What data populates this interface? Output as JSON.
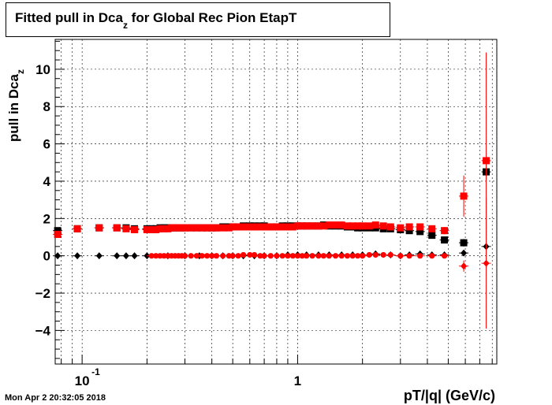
{
  "title_main": "Fitted pull in Dca",
  "title_sub": "z",
  "title_rest": " for Global Rec Pion EtapT",
  "ylabel_main": "pull in Dca",
  "ylabel_sub": "z",
  "xlabel": "pT/|q| (GeV/c)",
  "timestamp": "Mon Apr  2 20:32:05 2018",
  "chart_data": {
    "type": "scatter",
    "title": "Fitted pull in Dca_z for Global Rec Pion EtapT",
    "xlabel": "pT/|q| (GeV/c)",
    "ylabel": "pull in Dca_z",
    "xscale": "log",
    "xlim": [
      0.075,
      8.4
    ],
    "ylim": [
      -5.8,
      11.6
    ],
    "yticks": [
      -4,
      -2,
      0,
      2,
      4,
      6,
      8,
      10
    ],
    "xtick_labels": [
      {
        "x": 0.1,
        "label": "10",
        "sup": "-1"
      },
      {
        "x": 1,
        "label": "1",
        "sup": ""
      }
    ],
    "grid": true,
    "colors": {
      "black": "#000000",
      "red": "#ff0000"
    },
    "series": [
      {
        "marker": "square",
        "color": "#000000",
        "x": [
          0.077,
          0.095,
          0.12,
          0.145,
          0.16,
          0.175,
          0.2,
          0.21,
          0.22,
          0.23,
          0.24,
          0.25,
          0.26,
          0.27,
          0.28,
          0.29,
          0.3,
          0.32,
          0.34,
          0.36,
          0.38,
          0.4,
          0.42,
          0.45,
          0.48,
          0.5,
          0.53,
          0.56,
          0.6,
          0.63,
          0.67,
          0.7,
          0.75,
          0.8,
          0.85,
          0.9,
          0.95,
          1.0,
          1.05,
          1.1,
          1.17,
          1.25,
          1.32,
          1.4,
          1.5,
          1.6,
          1.7,
          1.8,
          1.9,
          2.0,
          2.15,
          2.3,
          2.5,
          2.7,
          3.0,
          3.3,
          3.7,
          4.2,
          4.8,
          5.9,
          7.5
        ],
        "y": [
          1.35,
          1.45,
          1.5,
          1.5,
          1.5,
          1.45,
          1.45,
          1.45,
          1.45,
          1.5,
          1.5,
          1.5,
          1.5,
          1.5,
          1.5,
          1.5,
          1.5,
          1.5,
          1.5,
          1.5,
          1.5,
          1.5,
          1.5,
          1.55,
          1.55,
          1.55,
          1.55,
          1.6,
          1.6,
          1.6,
          1.6,
          1.6,
          1.55,
          1.55,
          1.6,
          1.6,
          1.6,
          1.6,
          1.6,
          1.6,
          1.6,
          1.6,
          1.65,
          1.6,
          1.6,
          1.6,
          1.55,
          1.55,
          1.5,
          1.5,
          1.5,
          1.5,
          1.45,
          1.45,
          1.4,
          1.35,
          1.3,
          1.1,
          0.85,
          0.7,
          4.5
        ],
        "yerr": [
          0.05,
          0.05,
          0.05,
          0.05,
          0.05,
          0.05,
          0.05,
          0.05,
          0.05,
          0.05,
          0.05,
          0.05,
          0.05,
          0.05,
          0.05,
          0.05,
          0.05,
          0.05,
          0.05,
          0.05,
          0.05,
          0.05,
          0.05,
          0.05,
          0.05,
          0.05,
          0.05,
          0.05,
          0.05,
          0.05,
          0.05,
          0.05,
          0.05,
          0.05,
          0.05,
          0.05,
          0.05,
          0.05,
          0.05,
          0.05,
          0.05,
          0.05,
          0.05,
          0.05,
          0.05,
          0.05,
          0.05,
          0.05,
          0.05,
          0.05,
          0.05,
          0.05,
          0.05,
          0.05,
          0.05,
          0.05,
          0.05,
          0.1,
          0.15,
          0.2,
          0.4
        ]
      },
      {
        "marker": "diamond",
        "color": "#000000",
        "x": [
          0.077,
          0.095,
          0.12,
          0.145,
          0.16,
          0.175,
          0.2,
          0.25,
          0.3,
          0.35,
          0.4,
          0.45,
          0.5,
          0.56,
          0.63,
          0.7,
          0.8,
          0.9,
          1.0,
          1.1,
          1.25,
          1.4,
          1.6,
          1.8,
          2.0,
          2.3,
          2.7,
          3.0,
          3.3,
          3.7,
          4.2,
          4.8,
          5.9,
          7.5
        ],
        "y": [
          0.0,
          0.0,
          0.0,
          0.0,
          0.0,
          0.0,
          0.0,
          0.0,
          0.0,
          0.0,
          0.0,
          0.0,
          0.0,
          0.0,
          0.0,
          0.0,
          0.0,
          0.05,
          0.05,
          0.05,
          0.05,
          0.05,
          0.05,
          0.05,
          0.05,
          0.1,
          0.05,
          0.0,
          0.05,
          0.1,
          0.05,
          0.05,
          0.15,
          0.5
        ],
        "yerr": [
          0.02,
          0.02,
          0.02,
          0.02,
          0.02,
          0.02,
          0.02,
          0.02,
          0.02,
          0.02,
          0.02,
          0.02,
          0.02,
          0.02,
          0.02,
          0.02,
          0.02,
          0.02,
          0.02,
          0.02,
          0.02,
          0.02,
          0.02,
          0.02,
          0.02,
          0.02,
          0.02,
          0.02,
          0.02,
          0.02,
          0.05,
          0.05,
          0.1,
          0.2
        ]
      },
      {
        "marker": "square",
        "color": "#ff0000",
        "x": [
          0.077,
          0.095,
          0.12,
          0.145,
          0.16,
          0.175,
          0.2,
          0.21,
          0.22,
          0.23,
          0.24,
          0.25,
          0.26,
          0.27,
          0.28,
          0.29,
          0.3,
          0.32,
          0.34,
          0.36,
          0.38,
          0.4,
          0.42,
          0.45,
          0.48,
          0.5,
          0.53,
          0.56,
          0.6,
          0.63,
          0.67,
          0.7,
          0.75,
          0.8,
          0.85,
          0.9,
          0.95,
          1.0,
          1.05,
          1.1,
          1.17,
          1.25,
          1.32,
          1.4,
          1.5,
          1.6,
          1.7,
          1.8,
          1.9,
          2.0,
          2.15,
          2.3,
          2.5,
          2.7,
          3.0,
          3.3,
          3.7,
          4.2,
          4.8,
          5.9,
          7.5
        ],
        "y": [
          1.15,
          1.45,
          1.5,
          1.5,
          1.45,
          1.4,
          1.4,
          1.4,
          1.4,
          1.45,
          1.45,
          1.45,
          1.5,
          1.5,
          1.5,
          1.5,
          1.5,
          1.5,
          1.5,
          1.5,
          1.5,
          1.5,
          1.5,
          1.5,
          1.5,
          1.55,
          1.55,
          1.55,
          1.55,
          1.55,
          1.55,
          1.55,
          1.55,
          1.55,
          1.55,
          1.55,
          1.55,
          1.6,
          1.6,
          1.6,
          1.6,
          1.6,
          1.6,
          1.65,
          1.65,
          1.65,
          1.6,
          1.6,
          1.6,
          1.6,
          1.6,
          1.65,
          1.6,
          1.55,
          1.5,
          1.55,
          1.55,
          1.45,
          1.35,
          3.2,
          5.1
        ],
        "yerr": [
          0.05,
          0.05,
          0.05,
          0.05,
          0.05,
          0.05,
          0.05,
          0.05,
          0.05,
          0.05,
          0.05,
          0.05,
          0.05,
          0.05,
          0.05,
          0.05,
          0.05,
          0.05,
          0.05,
          0.05,
          0.05,
          0.05,
          0.05,
          0.05,
          0.05,
          0.05,
          0.05,
          0.05,
          0.05,
          0.05,
          0.05,
          0.05,
          0.05,
          0.05,
          0.05,
          0.05,
          0.05,
          0.05,
          0.05,
          0.05,
          0.05,
          0.05,
          0.05,
          0.05,
          0.05,
          0.05,
          0.05,
          0.05,
          0.05,
          0.05,
          0.05,
          0.05,
          0.05,
          0.05,
          0.05,
          0.05,
          0.05,
          0.1,
          0.2,
          1.1,
          5.8
        ]
      },
      {
        "marker": "circle",
        "color": "#ff0000",
        "x": [
          0.21,
          0.22,
          0.23,
          0.24,
          0.25,
          0.26,
          0.27,
          0.28,
          0.29,
          0.3,
          0.32,
          0.34,
          0.36,
          0.38,
          0.4,
          0.42,
          0.45,
          0.48,
          0.5,
          0.53,
          0.56,
          0.6,
          0.63,
          0.67,
          0.7,
          0.75,
          0.8,
          0.85,
          0.9,
          0.95,
          1.0,
          1.05,
          1.1,
          1.17,
          1.25,
          1.32,
          1.4,
          1.5,
          1.6,
          1.7,
          1.8,
          1.9,
          2.0,
          2.15,
          2.3,
          2.5,
          2.7,
          3.0,
          3.3,
          3.7,
          4.2,
          4.8
        ],
        "y": [
          0.0,
          0.0,
          0.0,
          0.0,
          0.0,
          0.0,
          0.0,
          0.0,
          0.0,
          0.0,
          0.0,
          0.0,
          0.0,
          0.0,
          0.0,
          0.0,
          0.0,
          0.0,
          0.0,
          0.0,
          0.05,
          0.05,
          0.05,
          0.0,
          0.0,
          0.0,
          0.0,
          0.0,
          0.0,
          0.0,
          0.0,
          0.0,
          0.0,
          0.0,
          0.0,
          0.0,
          0.0,
          0.0,
          0.0,
          0.0,
          0.0,
          0.0,
          0.0,
          0.05,
          0.05,
          0.05,
          0.05,
          0.0,
          0.0,
          0.0,
          0.0,
          0.0
        ],
        "yerr": [
          0.02,
          0.02,
          0.02,
          0.02,
          0.02,
          0.02,
          0.02,
          0.02,
          0.02,
          0.02,
          0.02,
          0.02,
          0.02,
          0.02,
          0.02,
          0.02,
          0.02,
          0.02,
          0.02,
          0.02,
          0.02,
          0.02,
          0.02,
          0.02,
          0.02,
          0.02,
          0.02,
          0.02,
          0.02,
          0.02,
          0.02,
          0.02,
          0.02,
          0.02,
          0.02,
          0.02,
          0.02,
          0.02,
          0.02,
          0.02,
          0.02,
          0.02,
          0.02,
          0.02,
          0.02,
          0.02,
          0.02,
          0.02,
          0.02,
          0.02,
          0.05,
          0.05
        ]
      },
      {
        "marker": "diamond",
        "color": "#ff0000",
        "x": [
          5.9,
          7.5
        ],
        "y": [
          -0.55,
          -0.4
        ],
        "yerr": [
          0.3,
          3.5
        ]
      }
    ]
  }
}
